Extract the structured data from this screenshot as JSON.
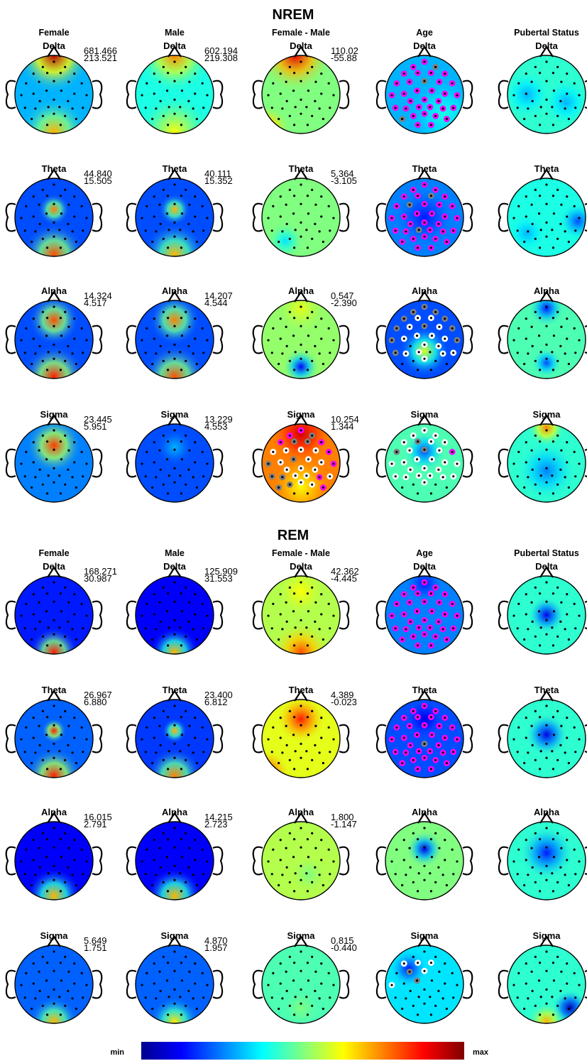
{
  "figure": {
    "sections": [
      {
        "title": "NREM",
        "columns": [
          "Female",
          "Male",
          "Female - Male",
          "Age",
          "Pubertal Status"
        ],
        "bands": [
          "Delta",
          "Theta",
          "Alpha",
          "Sigma"
        ],
        "scales": [
          [
            [
              "681.466",
              "213.521"
            ],
            [
              "602.194",
              "219.308"
            ],
            [
              "110.02",
              "-55.88"
            ],
            null,
            null
          ],
          [
            [
              "44.840",
              "15.505"
            ],
            [
              "40.111",
              "15.352"
            ],
            [
              "5.364",
              "-3.105"
            ],
            null,
            null
          ],
          [
            [
              "14.324",
              "4.517"
            ],
            [
              "14.207",
              "4.544"
            ],
            [
              "0.547",
              "-2.390"
            ],
            null,
            null
          ],
          [
            [
              "23.445",
              "5.951"
            ],
            [
              "13.229",
              "4.553"
            ],
            [
              "10.254",
              "1.344"
            ],
            null,
            null
          ]
        ]
      },
      {
        "title": "REM",
        "columns": [
          "Female",
          "Male",
          "Female - Male",
          "Age",
          "Pubertal Status"
        ],
        "bands": [
          "Delta",
          "Theta",
          "Alpha",
          "Sigma"
        ],
        "scales": [
          [
            [
              "168.271",
              "30.987"
            ],
            [
              "125.909",
              "31.553"
            ],
            [
              "42.362",
              "-4.445"
            ],
            null,
            null
          ],
          [
            [
              "26.967",
              "6.880"
            ],
            [
              "23.400",
              "6.812"
            ],
            [
              "4.389",
              "-0.023"
            ],
            null,
            null
          ],
          [
            [
              "16.015",
              "2.791"
            ],
            [
              "14.215",
              "2.723"
            ],
            [
              "1.800",
              "-1.147"
            ],
            null,
            null
          ],
          [
            [
              "5.649",
              "1.751"
            ],
            [
              "4.870",
              "1.957"
            ],
            [
              "0.815",
              "-0.440"
            ],
            null,
            null
          ]
        ]
      }
    ],
    "colorbar": {
      "min_label": "min",
      "max_label": "max"
    }
  }
}
